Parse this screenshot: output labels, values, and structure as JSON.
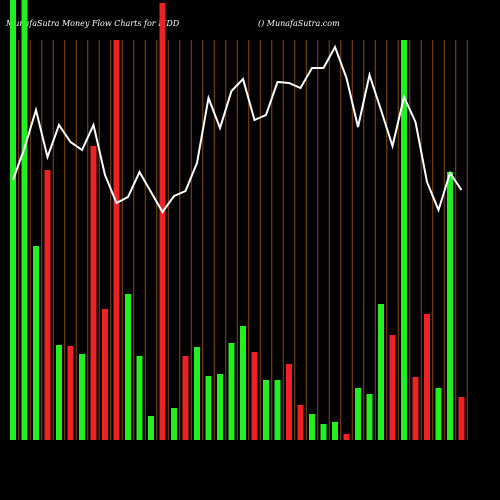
{
  "chart_data": {
    "type": "bar",
    "title": "MunafaSutra  Money Flow  Charts for MDD",
    "subtitle": "() MunafaSutra.com",
    "categories": [
      null,
      null,
      null,
      null,
      null,
      null,
      null,
      null,
      null,
      null,
      null,
      null,
      null,
      null,
      null,
      null,
      null,
      null,
      null,
      null,
      null,
      null,
      null,
      null,
      null,
      null,
      null,
      null,
      null,
      null,
      null,
      null,
      null,
      null,
      null,
      null,
      null,
      null,
      null,
      null
    ],
    "values": [
      440,
      440,
      194,
      270,
      95,
      94,
      86,
      294,
      131,
      400,
      146,
      84,
      24,
      437,
      32,
      84,
      93,
      64,
      66,
      97,
      114,
      88,
      60,
      60,
      76,
      35,
      26,
      16,
      18,
      6,
      52,
      46,
      136,
      105,
      400,
      63,
      126,
      52,
      268,
      43
    ],
    "colors": [
      "#22ee22",
      "#22ee22",
      "#22ee22",
      "#ee2222",
      "#22ee22",
      "#ee2222",
      "#22ee22",
      "#ee2222",
      "#ee2222",
      "#ee2222",
      "#22ee22",
      "#22ee22",
      "#22ee22",
      "#ee2222",
      "#22ee22",
      "#ee2222",
      "#22ee22",
      "#22ee22",
      "#22ee22",
      "#22ee22",
      "#22ee22",
      "#ee2222",
      "#22ee22",
      "#22ee22",
      "#ee2222",
      "#ee2222",
      "#22ee22",
      "#22ee22",
      "#22ee22",
      "#ee2222",
      "#22ee22",
      "#22ee22",
      "#22ee22",
      "#ee2222",
      "#22ee22",
      "#ee2222",
      "#ee2222",
      "#22ee22",
      "#22ee22",
      "#ee2222"
    ],
    "line": {
      "color": "#ffffff",
      "values": [
        260,
        292,
        330,
        283,
        315,
        298,
        290,
        315,
        265,
        237,
        243,
        268,
        248,
        228,
        244,
        249,
        277,
        342,
        312,
        349,
        361,
        320,
        325,
        358,
        357,
        352,
        372,
        372,
        393,
        362,
        313,
        365,
        330,
        294,
        343,
        318,
        258,
        230,
        267,
        250
      ]
    },
    "ylim": [
      0,
      440
    ],
    "grid": true,
    "grid_color": "#8b4a10"
  }
}
